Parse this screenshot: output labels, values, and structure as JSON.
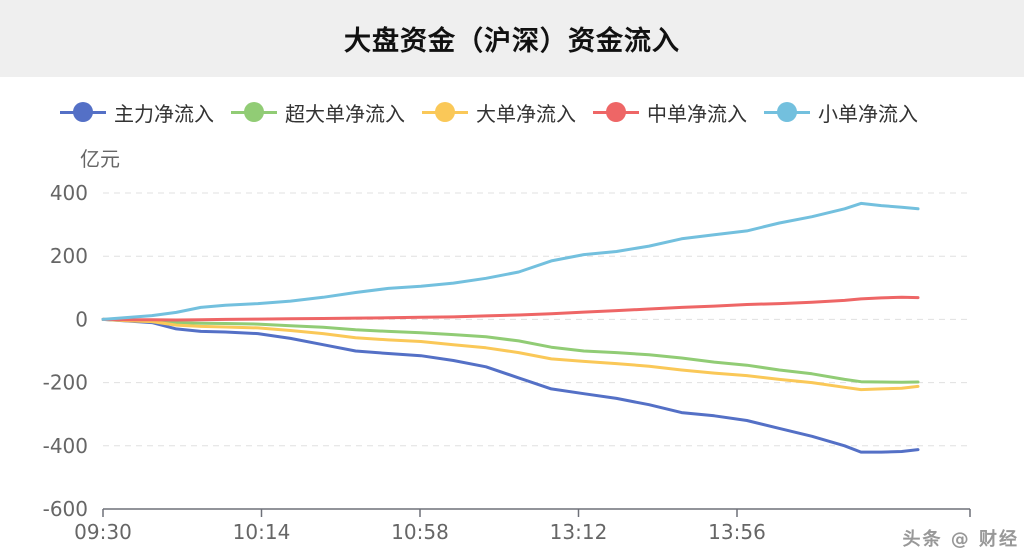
{
  "title": "大盘资金（沪深）资金流入",
  "unit": "亿元",
  "legend": [
    {
      "name": "主力净流入",
      "color": "#5470c6"
    },
    {
      "name": "超大单净流入",
      "color": "#91cc75"
    },
    {
      "name": "大单净流入",
      "color": "#fac858"
    },
    {
      "name": "中单净流入",
      "color": "#ee6666"
    },
    {
      "name": "小单净流入",
      "color": "#73c0de"
    }
  ],
  "chart_data": {
    "type": "line",
    "xlabel": "",
    "ylabel": "亿元",
    "ylim": [
      -600,
      400
    ],
    "yticks": [
      400,
      200,
      0,
      -200,
      -400,
      -600
    ],
    "xticks": [
      "09:30",
      "10:14",
      "10:58",
      "13:12",
      "13:56"
    ],
    "grid": true,
    "legend_position": "top",
    "x_progress": [
      0,
      0.03,
      0.06,
      0.09,
      0.12,
      0.15,
      0.19,
      0.23,
      0.27,
      0.31,
      0.35,
      0.39,
      0.43,
      0.47,
      0.51,
      0.55,
      0.59,
      0.63,
      0.67,
      0.71,
      0.75,
      0.79,
      0.83,
      0.87,
      0.91,
      0.93,
      0.955,
      0.98,
      1.0
    ],
    "series": [
      {
        "name": "主力净流入",
        "color": "#5470c6",
        "values": [
          0,
          -5,
          -10,
          -30,
          -38,
          -40,
          -45,
          -60,
          -80,
          -100,
          -108,
          -115,
          -130,
          -150,
          -185,
          -220,
          -235,
          -250,
          -270,
          -295,
          -305,
          -320,
          -345,
          -370,
          -400,
          -420,
          -420,
          -418,
          -412
        ]
      },
      {
        "name": "超大单净流入",
        "color": "#91cc75",
        "values": [
          0,
          -3,
          -5,
          -10,
          -12,
          -13,
          -15,
          -20,
          -25,
          -33,
          -38,
          -42,
          -48,
          -55,
          -68,
          -88,
          -100,
          -105,
          -112,
          -122,
          -135,
          -145,
          -160,
          -172,
          -190,
          -197,
          -198,
          -199,
          -198
        ]
      },
      {
        "name": "大单净流入",
        "color": "#fac858",
        "values": [
          0,
          -4,
          -7,
          -18,
          -22,
          -24,
          -27,
          -35,
          -45,
          -58,
          -65,
          -70,
          -80,
          -90,
          -105,
          -125,
          -133,
          -140,
          -148,
          -160,
          -170,
          -178,
          -190,
          -200,
          -215,
          -222,
          -220,
          -218,
          -212
        ]
      },
      {
        "name": "中单净流入",
        "color": "#ee6666",
        "values": [
          0,
          -1,
          -1,
          -2,
          -1,
          0,
          1,
          2,
          3,
          4,
          5,
          7,
          8,
          11,
          14,
          18,
          23,
          28,
          33,
          38,
          42,
          47,
          50,
          54,
          60,
          65,
          68,
          70,
          69
        ]
      },
      {
        "name": "小单净流入",
        "color": "#73c0de",
        "values": [
          0,
          6,
          12,
          22,
          38,
          45,
          50,
          58,
          70,
          85,
          98,
          105,
          115,
          130,
          150,
          185,
          205,
          215,
          232,
          255,
          268,
          280,
          305,
          325,
          350,
          367,
          360,
          355,
          350
        ]
      }
    ]
  },
  "watermark": "头条 @ 财经"
}
